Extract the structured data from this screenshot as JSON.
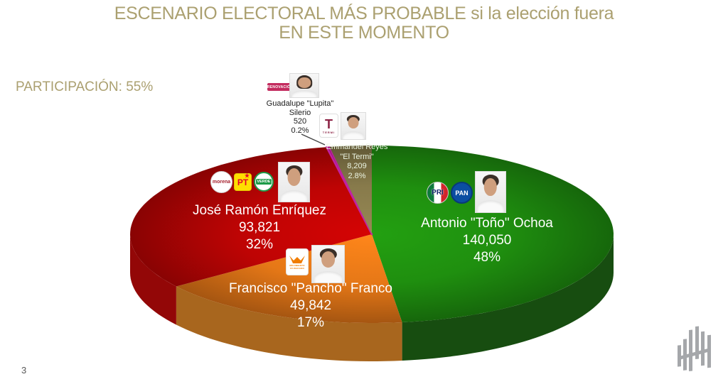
{
  "header": {
    "title_line1": "ESCENARIO ELECTORAL MÁS PROBABLE si la elección fuera",
    "title_line2": "EN ESTE MOMENTO",
    "participation": "PARTICIPACIÓN: 55%"
  },
  "colors": {
    "title_gold": "#ABA070"
  },
  "chart_data": {
    "type": "pie",
    "style": "3d",
    "title": "ESCENARIO ELECTORAL MÁS PROBABLE si la elección fuera EN ESTE MOMENTO",
    "participation": "55%",
    "start_angle": "12-oclock",
    "direction": "clockwise",
    "slices": [
      {
        "candidate": "Antonio \"Toño\" Ochoa",
        "name_line1": "Antonio \"Toño\" Ochoa",
        "parties": [
          "PRI",
          "PAN"
        ],
        "votes": 140050,
        "votes_label": "140,050",
        "pct": 48,
        "pct_label": "48%",
        "color": "#1F8F0F",
        "side_color": "#174D10"
      },
      {
        "candidate": "Francisco \"Pancho\" Franco",
        "name_line1": "Francisco \"Pancho\" Franco",
        "parties": [
          "Movimiento Ciudadano"
        ],
        "votes": 49842,
        "votes_label": "49,842",
        "pct": 17,
        "pct_label": "17%",
        "color": "#E67817",
        "side_color": "#A8661E"
      },
      {
        "candidate": "José Ramón Enríquez",
        "name_line1": "José Ramón Enríquez",
        "parties": [
          "Morena",
          "PT",
          "Partido Verde"
        ],
        "votes": 93821,
        "votes_label": "93,821",
        "pct": 32,
        "pct_label": "32%",
        "color": "#BE0404",
        "side_color": "#930707"
      },
      {
        "candidate": "Guadalupe \"Lupita\" Silerio",
        "name_line1": "Guadalupe \"Lupita\"",
        "name_line2": "Silerio",
        "parties": [
          "Renovación"
        ],
        "votes": 520,
        "votes_label": "520",
        "pct": 0.2,
        "pct_label": "0.2%",
        "color": "#C121A3",
        "side_color": "#8E1578"
      },
      {
        "candidate": "Emmanuel Reyes \"El Termi\"",
        "name_line1": "Emmanuel Reyes",
        "name_line2": "\"El Termi\"",
        "parties": [
          "El Termi"
        ],
        "votes": 8209,
        "votes_label": "8,209",
        "pct": 2.8,
        "pct_label": "2.8%",
        "color": "#877A4B",
        "side_color": "#655A35"
      }
    ]
  },
  "party_logos": {
    "morena": "morena",
    "pt": "PT",
    "verde": "VERDE",
    "pri": "PRI",
    "pan": "PAN",
    "mc_caption": "MOVIMIENTO CIUDADANO",
    "renovacion": "RENOVACIÓN",
    "termi_letter": "T",
    "termi_caption": "TERMI"
  },
  "footer": {
    "page_number": "3"
  }
}
